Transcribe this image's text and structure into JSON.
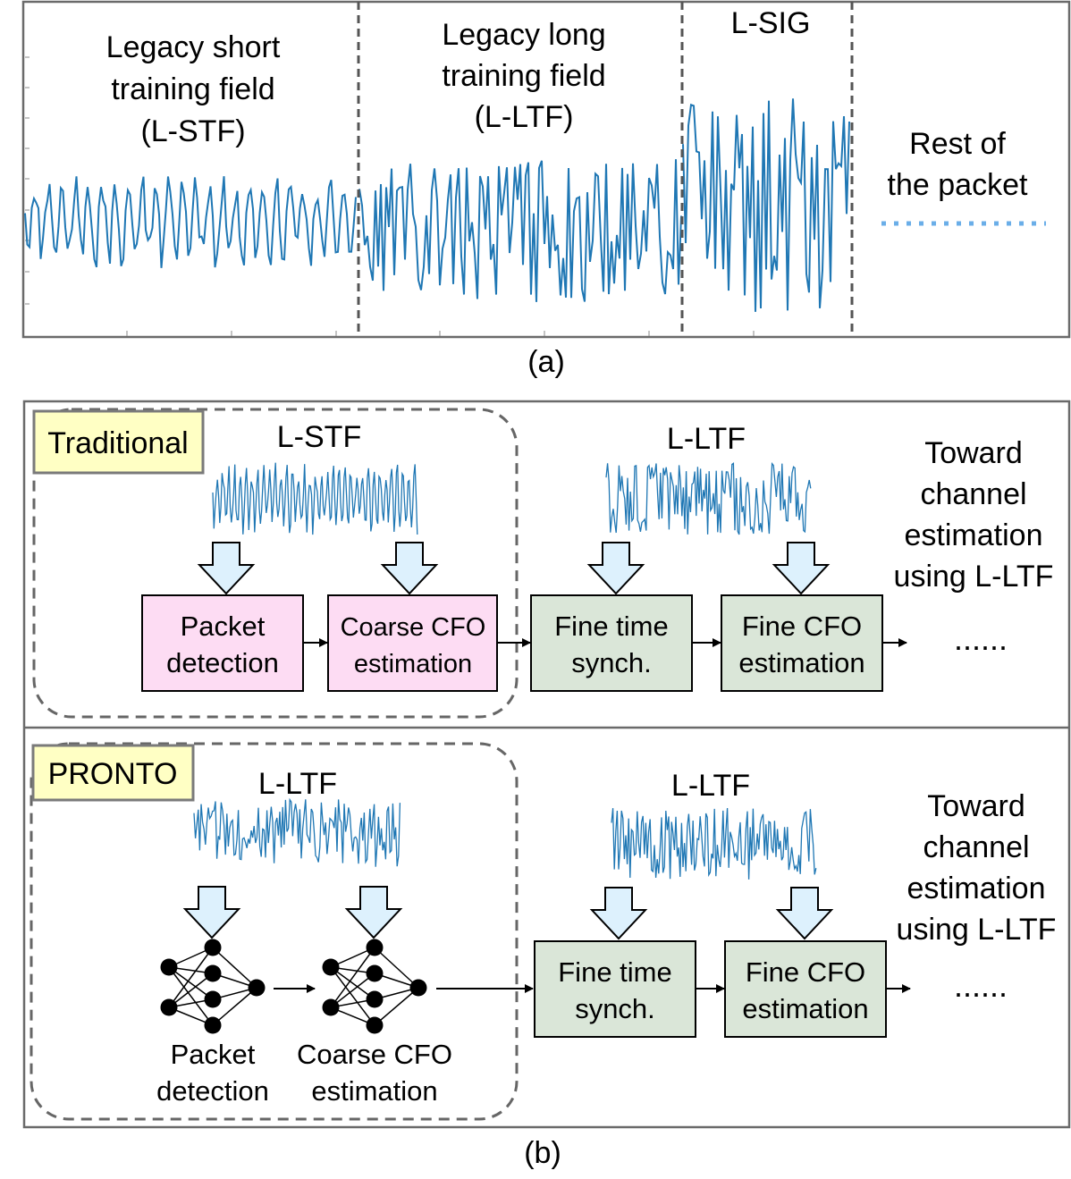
{
  "panel_a": {
    "segments": [
      {
        "lines": [
          "Legacy short",
          "training field",
          "(L-STF)"
        ]
      },
      {
        "lines": [
          "Legacy long",
          "training field",
          "(L-LTF)"
        ]
      },
      {
        "lines": [
          "L-SIG"
        ]
      },
      {
        "lines": [
          "Rest of",
          "the packet"
        ]
      }
    ],
    "caption": "(a)"
  },
  "panel_b": {
    "caption": "(b)",
    "traditional": {
      "badge": "Traditional",
      "signal_left": "L-STF",
      "signal_right": "L-LTF",
      "blocks": [
        {
          "lines": [
            "Packet",
            "detection"
          ]
        },
        {
          "lines": [
            "Coarse CFO",
            "estimation"
          ]
        },
        {
          "lines": [
            "Fine time",
            "synch."
          ]
        },
        {
          "lines": [
            "Fine CFO",
            "estimation"
          ]
        }
      ],
      "toward": [
        "Toward",
        "channel",
        "estimation",
        "using L-LTF"
      ],
      "ellipsis": "......"
    },
    "pronto": {
      "badge": "PRONTO",
      "signal_left": "L-LTF",
      "signal_right": "L-LTF",
      "nn_labels": [
        {
          "lines": [
            "Packet",
            "detection"
          ]
        },
        {
          "lines": [
            "Coarse CFO",
            "estimation"
          ]
        }
      ],
      "blocks": [
        {
          "lines": [
            "Fine time",
            "synch."
          ]
        },
        {
          "lines": [
            "Fine CFO",
            "estimation"
          ]
        }
      ],
      "toward": [
        "Toward",
        "channel",
        "estimation",
        "using L-LTF"
      ],
      "ellipsis": "......"
    }
  },
  "colors": {
    "signal": "#1f77b4",
    "rest_dots": "#6aaee8",
    "pink_block": "#fddcf3",
    "green_block": "#dae6d8",
    "badge": "#ffffc4",
    "arrow_fill": "#ddf1fd",
    "dashed": "#666666"
  }
}
